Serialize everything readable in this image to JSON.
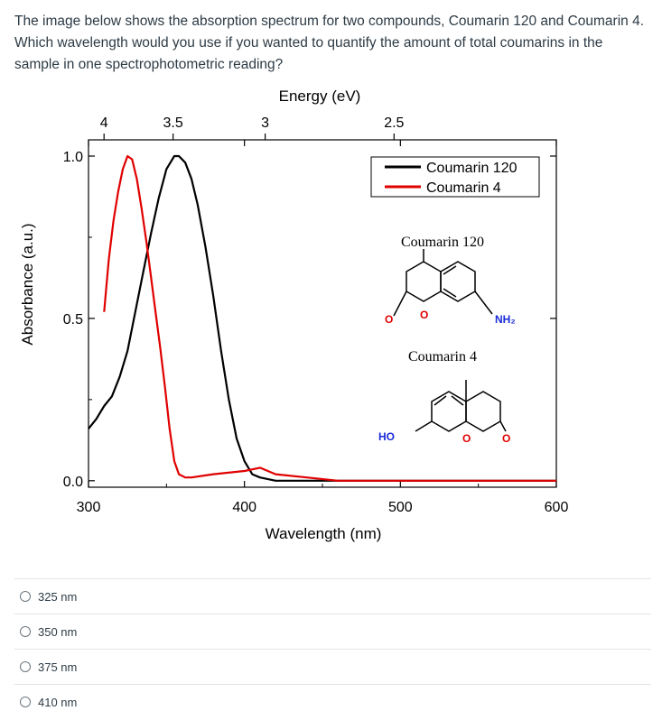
{
  "question": {
    "text": "The image below shows the absorption spectrum for two compounds, Coumarin 120 and Coumarin 4. Which wavelength would you use if you wanted to quantify the amount of total coumarins in the sample in one spectrophotometric reading?"
  },
  "chart_data": {
    "type": "line",
    "xlabel": "Wavelength (nm)",
    "ylabel": "Absorbance (a.u.)",
    "top_axis_label": "Energy (eV)",
    "xlim": [
      300,
      600
    ],
    "ylim": [
      -0.02,
      1.05
    ],
    "x_ticks": [
      "300",
      "400",
      "500",
      "600"
    ],
    "x_tick_values": [
      300,
      400,
      500,
      600
    ],
    "y_ticks": [
      "0.0",
      "0.5",
      "1.0"
    ],
    "y_tick_values": [
      0.0,
      0.5,
      1.0
    ],
    "top_ticks": [
      "4",
      "3.5",
      "3",
      "2.5"
    ],
    "top_tick_values": [
      4,
      3.5,
      3,
      2.5
    ],
    "legend_position": "top-right",
    "series": [
      {
        "name": "Coumarin 120",
        "color": "#000000",
        "x": [
          300,
          305,
          310,
          315,
          320,
          325,
          330,
          335,
          340,
          345,
          350,
          355,
          358,
          362,
          366,
          370,
          375,
          380,
          385,
          390,
          395,
          400,
          405,
          410,
          420,
          440,
          460,
          500,
          550,
          600
        ],
        "y": [
          0.16,
          0.19,
          0.23,
          0.26,
          0.32,
          0.4,
          0.52,
          0.64,
          0.76,
          0.87,
          0.96,
          1.0,
          1.0,
          0.98,
          0.93,
          0.85,
          0.72,
          0.57,
          0.4,
          0.25,
          0.13,
          0.06,
          0.02,
          0.01,
          0.0,
          0.0,
          0.0,
          0.0,
          0.0,
          0.0
        ]
      },
      {
        "name": "Coumarin 4",
        "color": "#e00000",
        "x": [
          310,
          313,
          316,
          319,
          322,
          325,
          328,
          331,
          334,
          337,
          340,
          343,
          346,
          349,
          352,
          355,
          358,
          362,
          366,
          380,
          400,
          410,
          420,
          440,
          460,
          500,
          550,
          600
        ],
        "y": [
          0.52,
          0.68,
          0.8,
          0.89,
          0.96,
          1.0,
          0.99,
          0.93,
          0.84,
          0.74,
          0.63,
          0.52,
          0.41,
          0.29,
          0.16,
          0.06,
          0.02,
          0.01,
          0.01,
          0.02,
          0.03,
          0.04,
          0.02,
          0.01,
          0.0,
          0.0,
          0.0,
          0.0
        ]
      }
    ],
    "annotations": [
      {
        "text": "Coumarin 120",
        "kind": "structure-title"
      },
      {
        "text": "Coumarin 4",
        "kind": "structure-title"
      },
      {
        "text": "O",
        "kind": "atom"
      },
      {
        "text": "O",
        "kind": "atom"
      },
      {
        "text": "NH₂",
        "kind": "atom"
      },
      {
        "text": "HO",
        "kind": "atom"
      },
      {
        "text": "O",
        "kind": "atom"
      },
      {
        "text": "O",
        "kind": "atom"
      }
    ]
  },
  "options": [
    {
      "label": "325 nm"
    },
    {
      "label": "350 nm"
    },
    {
      "label": "375 nm"
    },
    {
      "label": "410 nm"
    }
  ]
}
